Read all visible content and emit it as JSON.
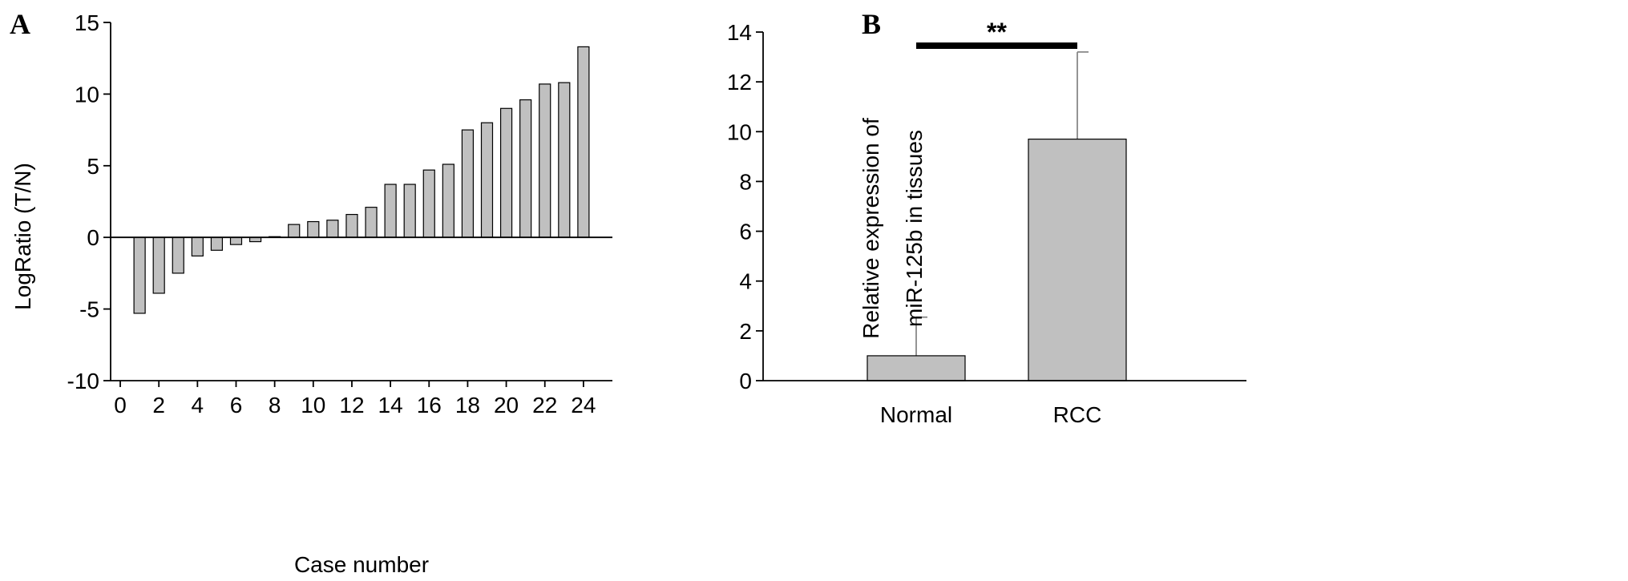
{
  "chart_data": [
    {
      "panel": "A",
      "type": "bar",
      "xlabel": "Case number",
      "ylabel": "LogRatio (T/N)",
      "ylim": [
        -10,
        15
      ],
      "xlim": [
        -0.5,
        25.5
      ],
      "yticks": [
        -10,
        -5,
        0,
        5,
        10,
        15
      ],
      "xticks": [
        0,
        2,
        4,
        6,
        8,
        10,
        12,
        14,
        16,
        18,
        20,
        22,
        24
      ],
      "grid": false,
      "bar_color": "#c0c0c0",
      "x": [
        1,
        2,
        3,
        4,
        5,
        6,
        7,
        8,
        9,
        10,
        11,
        12,
        13,
        14,
        15,
        16,
        17,
        18,
        19,
        20,
        21,
        22,
        23,
        24
      ],
      "values": [
        -5.3,
        -3.9,
        -2.5,
        -1.3,
        -0.9,
        -0.5,
        -0.3,
        0.05,
        0.9,
        1.1,
        1.2,
        1.6,
        2.1,
        3.7,
        3.7,
        4.7,
        5.1,
        7.5,
        8.0,
        9.0,
        9.6,
        10.7,
        10.8,
        13.3
      ]
    },
    {
      "panel": "B",
      "type": "bar",
      "xlabel": "",
      "ylabel": "Relative expression of miR-125b in tissues",
      "ylabel_lines": [
        "Relative expression of",
        "miR-125b in tissues"
      ],
      "ylim": [
        0,
        14
      ],
      "yticks": [
        0,
        2,
        4,
        6,
        8,
        10,
        12,
        14
      ],
      "grid": false,
      "bar_color": "#c0c0c0",
      "categories": [
        "Normal",
        "RCC"
      ],
      "values": [
        1.0,
        9.7
      ],
      "error_upper": [
        1.55,
        3.5
      ],
      "significance": {
        "between": [
          "Normal",
          "RCC"
        ],
        "label": "**"
      }
    }
  ]
}
